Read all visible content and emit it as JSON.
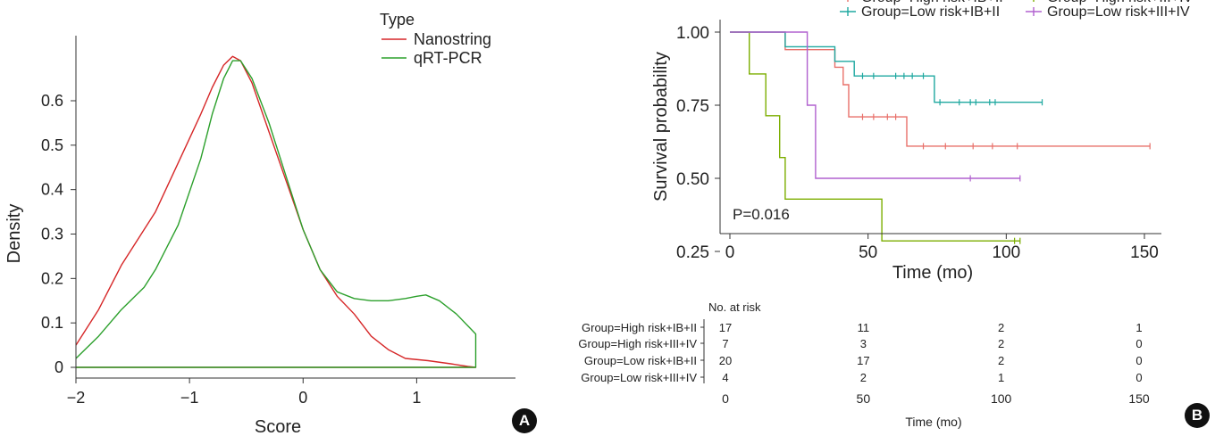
{
  "panel_a_label": "A",
  "panel_b_label": "B",
  "chart_data": [
    {
      "type": "line",
      "xlabel": "Score",
      "ylabel": "Density",
      "xlim": [
        -2,
        1.55
      ],
      "ylim": [
        0,
        0.72
      ],
      "xticks": [
        -2,
        -1,
        0,
        1
      ],
      "xtick_labels": [
        "−2",
        "−1",
        "0",
        "1"
      ],
      "yticks": [
        0,
        0.1,
        0.2,
        0.3,
        0.4,
        0.5,
        0.6
      ],
      "ytick_labels": [
        "0",
        "0.1",
        "0.2",
        "0.3",
        "0.4",
        "0.5",
        "0.6"
      ],
      "legend_title": "Type",
      "legend_position": "top-right",
      "series": [
        {
          "name": "Nanostring",
          "color": "#d62728",
          "x": [
            -2.0,
            -1.8,
            -1.6,
            -1.4,
            -1.3,
            -1.1,
            -0.9,
            -0.8,
            -0.7,
            -0.62,
            -0.55,
            -0.45,
            -0.3,
            -0.15,
            0.0,
            0.15,
            0.3,
            0.45,
            0.6,
            0.75,
            0.9,
            1.1,
            1.3,
            1.45,
            1.52
          ],
          "values": [
            0.05,
            0.13,
            0.23,
            0.31,
            0.35,
            0.46,
            0.57,
            0.63,
            0.68,
            0.7,
            0.69,
            0.64,
            0.53,
            0.42,
            0.31,
            0.22,
            0.16,
            0.12,
            0.07,
            0.04,
            0.02,
            0.015,
            0.008,
            0.002,
            0.0
          ]
        },
        {
          "name": "qRT-PCR",
          "color": "#2ca02c",
          "x": [
            -2.0,
            -1.8,
            -1.6,
            -1.4,
            -1.3,
            -1.1,
            -0.9,
            -0.8,
            -0.7,
            -0.62,
            -0.55,
            -0.45,
            -0.3,
            -0.15,
            0.0,
            0.15,
            0.3,
            0.45,
            0.6,
            0.75,
            0.9,
            1.0,
            1.08,
            1.2,
            1.35,
            1.52
          ],
          "values": [
            0.02,
            0.07,
            0.13,
            0.18,
            0.22,
            0.32,
            0.47,
            0.57,
            0.65,
            0.69,
            0.69,
            0.65,
            0.55,
            0.43,
            0.31,
            0.22,
            0.17,
            0.155,
            0.15,
            0.15,
            0.155,
            0.16,
            0.163,
            0.15,
            0.12,
            0.075
          ]
        }
      ]
    },
    {
      "type": "line",
      "subtype": "kaplan-meier",
      "xlabel": "Time (mo)",
      "ylabel": "Survival probability",
      "xlim": [
        0,
        160
      ],
      "ylim": [
        0,
        1.0
      ],
      "xticks": [
        0,
        50,
        100,
        150
      ],
      "yticks": [
        0.25,
        0.5,
        0.75,
        1.0
      ],
      "ytick_labels": [
        "0.25",
        "0.50",
        "0.75",
        "1.00"
      ],
      "annotation": "P=0.016",
      "legend_position": "top",
      "series": [
        {
          "name": "Group=High risk+IB+II",
          "color": "#e8706a",
          "steps": [
            [
              0,
              1.0
            ],
            [
              20,
              0.94
            ],
            [
              38,
              0.88
            ],
            [
              41,
              0.82
            ],
            [
              43,
              0.71
            ],
            [
              64,
              0.61
            ],
            [
              152,
              0.61
            ]
          ],
          "censored": [
            [
              48,
              0.71
            ],
            [
              52,
              0.71
            ],
            [
              57,
              0.71
            ],
            [
              60,
              0.71
            ],
            [
              70,
              0.61
            ],
            [
              78,
              0.61
            ],
            [
              88,
              0.61
            ],
            [
              95,
              0.61
            ],
            [
              104,
              0.61
            ],
            [
              152,
              0.61
            ]
          ]
        },
        {
          "name": "Group=High risk+III+IV",
          "color": "#7cae00",
          "steps": [
            [
              0,
              1.0
            ],
            [
              7,
              0.857
            ],
            [
              13,
              0.714
            ],
            [
              18,
              0.571
            ],
            [
              20,
              0.429
            ],
            [
              55,
              0.286
            ],
            [
              105,
              0.286
            ]
          ],
          "censored": [
            [
              103,
              0.286
            ],
            [
              105,
              0.286
            ]
          ]
        },
        {
          "name": "Group=Low risk+IB+II",
          "color": "#1fa8a0",
          "steps": [
            [
              0,
              1.0
            ],
            [
              20,
              0.95
            ],
            [
              38,
              0.9
            ],
            [
              45,
              0.85
            ],
            [
              74,
              0.76
            ],
            [
              113,
              0.76
            ]
          ],
          "censored": [
            [
              48,
              0.85
            ],
            [
              52,
              0.85
            ],
            [
              60,
              0.85
            ],
            [
              63,
              0.85
            ],
            [
              66,
              0.85
            ],
            [
              70,
              0.85
            ],
            [
              76,
              0.76
            ],
            [
              83,
              0.76
            ],
            [
              87,
              0.76
            ],
            [
              89,
              0.76
            ],
            [
              94,
              0.76
            ],
            [
              96,
              0.76
            ],
            [
              113,
              0.76
            ]
          ]
        },
        {
          "name": "Group=Low risk+III+IV",
          "color": "#b060cf",
          "steps": [
            [
              0,
              1.0
            ],
            [
              28,
              0.75
            ],
            [
              31,
              0.5
            ],
            [
              105,
              0.5
            ]
          ],
          "censored": [
            [
              87,
              0.5
            ],
            [
              105,
              0.5
            ]
          ]
        }
      ],
      "risk_table": {
        "title": "No. at risk",
        "xlabel": "Time (mo)",
        "xticks": [
          0,
          50,
          100,
          150
        ],
        "rows": [
          {
            "name": "Group=High risk+IB+II",
            "counts": [
              17,
              11,
              2,
              1
            ]
          },
          {
            "name": "Group=High risk+III+IV",
            "counts": [
              7,
              3,
              2,
              0
            ]
          },
          {
            "name": "Group=Low risk+IB+II",
            "counts": [
              20,
              17,
              2,
              0
            ]
          },
          {
            "name": "Group=Low risk+III+IV",
            "counts": [
              4,
              2,
              1,
              0
            ]
          }
        ]
      }
    }
  ]
}
